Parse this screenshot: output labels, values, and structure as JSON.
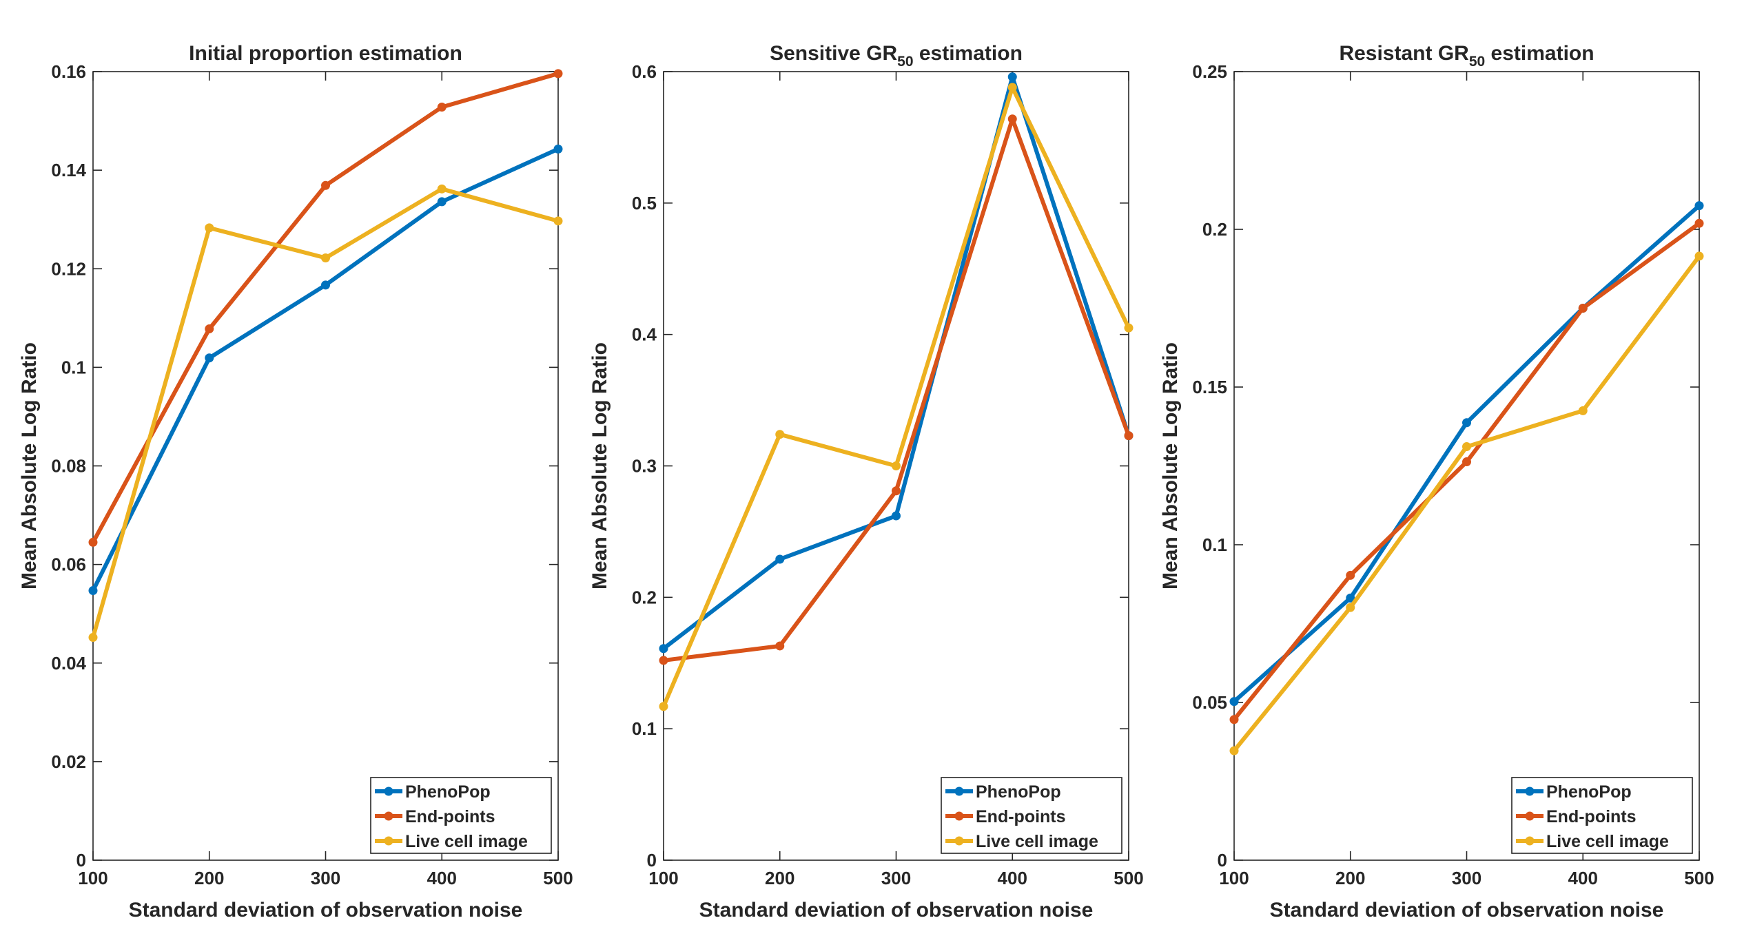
{
  "chart_data": [
    {
      "type": "line",
      "title": "Initial proportion estimation",
      "title_parts": [
        {
          "t": "Initial proportion estimation"
        }
      ],
      "xlabel": "Standard deviation of observation noise",
      "ylabel": "Mean Absolute Log Ratio",
      "x": [
        100,
        200,
        300,
        400,
        500
      ],
      "xlim": [
        100,
        500
      ],
      "ylim": [
        0,
        0.16
      ],
      "xticks": [
        "100",
        "200",
        "300",
        "400",
        "500"
      ],
      "yticks": [
        0,
        0.02,
        0.04,
        0.06,
        0.08,
        0.1,
        0.12,
        0.14,
        0.16
      ],
      "ytick_labels": [
        "0",
        "0.02",
        "0.04",
        "0.06",
        "0.08",
        "0.1",
        "0.12",
        "0.14",
        "0.16"
      ],
      "grid": false,
      "legend_position": "bottom-right",
      "series": [
        {
          "name": "PhenoPop",
          "color": "#0072BD",
          "values": [
            0.0547,
            0.1019,
            0.1167,
            0.1336,
            0.1443
          ]
        },
        {
          "name": "End-points",
          "color": "#D95319",
          "values": [
            0.0645,
            0.1078,
            0.1369,
            0.1528,
            0.1596
          ]
        },
        {
          "name": "Live cell image",
          "color": "#EDB120",
          "values": [
            0.0452,
            0.1283,
            0.1222,
            0.1362,
            0.1297
          ]
        }
      ]
    },
    {
      "type": "line",
      "title": "Sensitive GR50 estimation",
      "title_parts": [
        {
          "t": "Sensitive GR"
        },
        {
          "t": "50",
          "sub": true
        },
        {
          "t": " estimation"
        }
      ],
      "xlabel": "Standard deviation of observation noise",
      "ylabel": "Mean Absolute Log Ratio",
      "x": [
        100,
        200,
        300,
        400,
        500
      ],
      "xlim": [
        100,
        500
      ],
      "ylim": [
        0,
        0.6
      ],
      "xticks": [
        "100",
        "200",
        "300",
        "400",
        "500"
      ],
      "yticks": [
        0,
        0.1,
        0.2,
        0.3,
        0.4,
        0.5,
        0.6
      ],
      "ytick_labels": [
        "0",
        "0.1",
        "0.2",
        "0.3",
        "0.4",
        "0.5",
        "0.6"
      ],
      "grid": false,
      "legend_position": "bottom-right",
      "series": [
        {
          "name": "PhenoPop",
          "color": "#0072BD",
          "values": [
            0.161,
            0.229,
            0.262,
            0.596,
            0.323
          ]
        },
        {
          "name": "End-points",
          "color": "#D95319",
          "values": [
            0.152,
            0.163,
            0.281,
            0.564,
            0.323
          ]
        },
        {
          "name": "Live cell image",
          "color": "#EDB120",
          "values": [
            0.117,
            0.324,
            0.3,
            0.588,
            0.405
          ]
        }
      ]
    },
    {
      "type": "line",
      "title": "Resistant GR50 estimation",
      "title_parts": [
        {
          "t": "Resistant GR"
        },
        {
          "t": "50",
          "sub": true
        },
        {
          "t": " estimation"
        }
      ],
      "xlabel": "Standard deviation of observation noise",
      "ylabel": "Mean Absolute Log Ratio",
      "x": [
        100,
        200,
        300,
        400,
        500
      ],
      "xlim": [
        100,
        500
      ],
      "ylim": [
        0,
        0.25
      ],
      "xticks": [
        "100",
        "200",
        "300",
        "400",
        "500"
      ],
      "yticks": [
        0,
        0.05,
        0.1,
        0.15,
        0.2,
        0.25
      ],
      "ytick_labels": [
        "0",
        "0.05",
        "0.1",
        "0.15",
        "0.2",
        "0.25"
      ],
      "grid": false,
      "legend_position": "bottom-right",
      "series": [
        {
          "name": "PhenoPop",
          "color": "#0072BD",
          "values": [
            0.0503,
            0.0831,
            0.1387,
            0.175,
            0.2075
          ]
        },
        {
          "name": "End-points",
          "color": "#D95319",
          "values": [
            0.0446,
            0.0903,
            0.1263,
            0.175,
            0.2019
          ]
        },
        {
          "name": "Live cell image",
          "color": "#EDB120",
          "values": [
            0.0347,
            0.0801,
            0.1311,
            0.1425,
            0.1915
          ]
        }
      ]
    }
  ]
}
